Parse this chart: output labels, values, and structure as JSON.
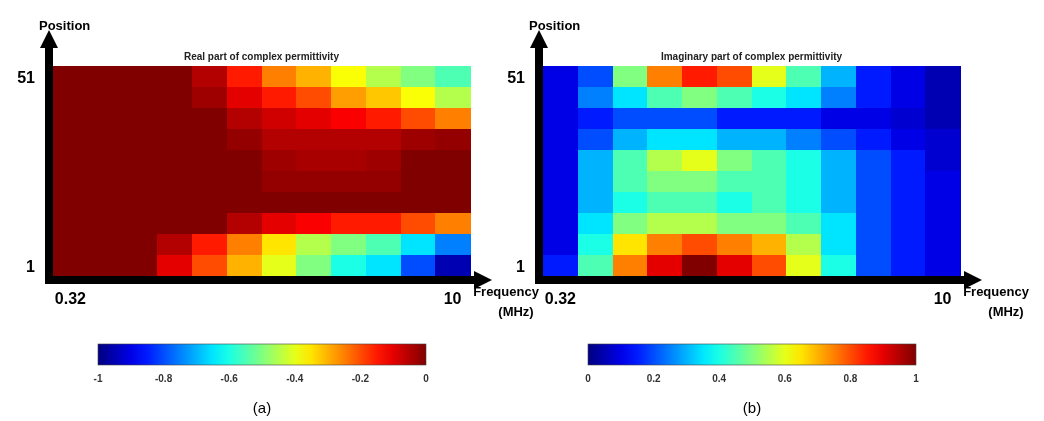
{
  "chart_data": [
    {
      "type": "heatmap",
      "title": "Real part of complex permittivity",
      "xlabel": "Frequency (MHz)",
      "ylabel": "Position",
      "annotations": [
        "(a)"
      ],
      "categories": [
        "0.32",
        null,
        null,
        null,
        null,
        null,
        null,
        null,
        null,
        null,
        null,
        "10"
      ],
      "y_categories": [
        "51",
        null,
        null,
        null,
        null,
        null,
        null,
        null,
        null,
        "1"
      ],
      "cells": [
        [
          0,
          0,
          0,
          0,
          -0.05,
          -0.15,
          -0.25,
          -0.3,
          -0.38,
          -0.45,
          -0.5,
          -0.55
        ],
        [
          0,
          0,
          0,
          0,
          -0.03,
          -0.1,
          -0.15,
          -0.2,
          -0.28,
          -0.32,
          -0.38,
          -0.45
        ],
        [
          0,
          0,
          0,
          0,
          0,
          -0.05,
          -0.08,
          -0.1,
          -0.12,
          -0.15,
          -0.2,
          -0.25
        ],
        [
          0,
          0,
          0,
          0,
          0,
          -0.02,
          -0.05,
          -0.05,
          -0.05,
          -0.05,
          -0.03,
          -0.02
        ],
        [
          0,
          0,
          0,
          0,
          0,
          0,
          -0.03,
          -0.04,
          -0.04,
          -0.03,
          0,
          0
        ],
        [
          0,
          0,
          0,
          0,
          0,
          0,
          -0.02,
          -0.02,
          -0.02,
          -0.02,
          0,
          0
        ],
        [
          0,
          0,
          0,
          0,
          0,
          0,
          0,
          0,
          0,
          0,
          0,
          0
        ],
        [
          0,
          0,
          0,
          0,
          0,
          -0.05,
          -0.1,
          -0.12,
          -0.15,
          -0.15,
          -0.2,
          -0.25
        ],
        [
          0,
          0,
          0,
          -0.05,
          -0.15,
          -0.25,
          -0.35,
          -0.45,
          -0.5,
          -0.55,
          -0.65,
          -0.75
        ],
        [
          0,
          0,
          0,
          -0.1,
          -0.2,
          -0.3,
          -0.4,
          -0.5,
          -0.6,
          -0.65,
          -0.8,
          -0.95
        ]
      ],
      "clim": [
        -1,
        0
      ],
      "cticks": [
        -1,
        -0.8,
        -0.6,
        -0.4,
        -0.2,
        0
      ]
    },
    {
      "type": "heatmap",
      "title": "Imaginary part of complex permittivity",
      "xlabel": "Frequency (MHz)",
      "ylabel": "Position",
      "annotations": [
        "(b)"
      ],
      "categories": [
        "0.32",
        null,
        null,
        null,
        null,
        null,
        null,
        null,
        null,
        null,
        null,
        "10"
      ],
      "y_categories": [
        "51",
        null,
        null,
        null,
        null,
        null,
        null,
        null,
        null,
        "1"
      ],
      "cells": [
        [
          0.1,
          0.2,
          0.5,
          0.75,
          0.85,
          0.8,
          0.6,
          0.45,
          0.3,
          0.15,
          0.1,
          0.05
        ],
        [
          0.1,
          0.25,
          0.35,
          0.45,
          0.5,
          0.45,
          0.4,
          0.35,
          0.25,
          0.15,
          0.1,
          0.05
        ],
        [
          0.1,
          0.15,
          0.2,
          0.2,
          0.2,
          0.15,
          0.15,
          0.15,
          0.1,
          0.1,
          0.08,
          0.05
        ],
        [
          0.1,
          0.2,
          0.3,
          0.35,
          0.35,
          0.3,
          0.3,
          0.25,
          0.2,
          0.15,
          0.1,
          0.08
        ],
        [
          0.1,
          0.3,
          0.45,
          0.55,
          0.6,
          0.5,
          0.45,
          0.4,
          0.3,
          0.2,
          0.15,
          0.08
        ],
        [
          0.1,
          0.3,
          0.45,
          0.5,
          0.5,
          0.45,
          0.45,
          0.4,
          0.3,
          0.2,
          0.15,
          0.1
        ],
        [
          0.1,
          0.3,
          0.4,
          0.45,
          0.45,
          0.4,
          0.45,
          0.4,
          0.3,
          0.2,
          0.15,
          0.1
        ],
        [
          0.1,
          0.35,
          0.5,
          0.55,
          0.55,
          0.5,
          0.5,
          0.45,
          0.35,
          0.2,
          0.15,
          0.1
        ],
        [
          0.1,
          0.4,
          0.65,
          0.75,
          0.8,
          0.75,
          0.7,
          0.55,
          0.35,
          0.2,
          0.15,
          0.1
        ],
        [
          0.15,
          0.45,
          0.75,
          0.9,
          1,
          0.9,
          0.8,
          0.6,
          0.4,
          0.2,
          0.15,
          0.1
        ]
      ],
      "clim": [
        0,
        1
      ],
      "cticks": [
        0,
        0.2,
        0.4,
        0.6,
        0.8,
        1
      ]
    }
  ]
}
